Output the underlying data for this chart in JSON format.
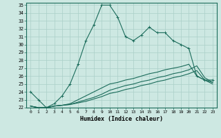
{
  "xlabel": "Humidex (Indice chaleur)",
  "bg_color": "#cde8e2",
  "grid_color": "#aacfc8",
  "line_color": "#1a6b5a",
  "xlim_min": -0.5,
  "xlim_max": 23.5,
  "ylim_min": 22,
  "ylim_max": 35.3,
  "xticks": [
    0,
    1,
    2,
    3,
    4,
    5,
    6,
    7,
    8,
    9,
    10,
    11,
    12,
    13,
    14,
    15,
    16,
    17,
    18,
    19,
    20,
    21,
    22,
    23
  ],
  "yticks": [
    22,
    23,
    24,
    25,
    26,
    27,
    28,
    29,
    30,
    31,
    32,
    33,
    34,
    35
  ],
  "line1_x": [
    0,
    1,
    2,
    3,
    4,
    5,
    6,
    7,
    8,
    9,
    10,
    11,
    12,
    13,
    14,
    15,
    16,
    17,
    18,
    19,
    20,
    21,
    22,
    23
  ],
  "line1_y": [
    24,
    23,
    22,
    22.5,
    23.5,
    25,
    27.5,
    30.5,
    32.5,
    35,
    35,
    33.5,
    31,
    30.5,
    31.2,
    32.2,
    31.5,
    31.5,
    30.5,
    30,
    29.5,
    26,
    25.5,
    25.5
  ],
  "line2_x": [
    0,
    1,
    2,
    3,
    4,
    5,
    6,
    7,
    8,
    9,
    10,
    11,
    12,
    13,
    14,
    15,
    16,
    17,
    18,
    19,
    20,
    21,
    22,
    23
  ],
  "line2_y": [
    22.2,
    22,
    22,
    22.2,
    22.3,
    22.5,
    23.0,
    23.5,
    24.0,
    24.5,
    25.0,
    25.2,
    25.5,
    25.7,
    26.0,
    26.3,
    26.5,
    26.8,
    27.0,
    27.2,
    27.5,
    26.0,
    25.5,
    25.0
  ],
  "line3_x": [
    0,
    1,
    2,
    3,
    4,
    5,
    6,
    7,
    8,
    9,
    10,
    11,
    12,
    13,
    14,
    15,
    16,
    17,
    18,
    19,
    20,
    21,
    22,
    23
  ],
  "line3_y": [
    22.2,
    22,
    22,
    22.2,
    22.3,
    22.4,
    22.7,
    23.0,
    23.3,
    23.7,
    24.2,
    24.5,
    24.8,
    25.0,
    25.3,
    25.5,
    25.8,
    26.0,
    26.3,
    26.5,
    26.8,
    27.3,
    25.8,
    25.2
  ],
  "line4_x": [
    0,
    1,
    2,
    3,
    4,
    5,
    6,
    7,
    8,
    9,
    10,
    11,
    12,
    13,
    14,
    15,
    16,
    17,
    18,
    19,
    20,
    21,
    22,
    23
  ],
  "line4_y": [
    22.2,
    22,
    22,
    22.2,
    22.3,
    22.4,
    22.6,
    22.8,
    23.1,
    23.4,
    23.8,
    24.0,
    24.3,
    24.5,
    24.8,
    25.0,
    25.3,
    25.5,
    25.8,
    26.0,
    26.3,
    26.7,
    25.5,
    25.2
  ]
}
